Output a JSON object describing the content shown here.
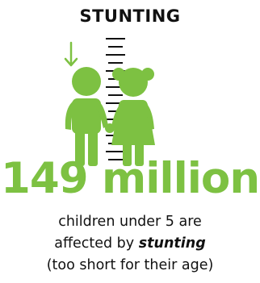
{
  "title": "STUNTING",
  "headline": "149 million",
  "caption": {
    "line1": "children under 5 are",
    "line2_prefix": "affected by ",
    "line2_emphasis": "stunting",
    "line3": "(too short for their age)"
  },
  "colors": {
    "accent": "#7dc142",
    "text": "#111111"
  },
  "icons": [
    "down-arrow-icon",
    "height-ruler-icon",
    "boy-child-icon",
    "girl-child-icon"
  ]
}
